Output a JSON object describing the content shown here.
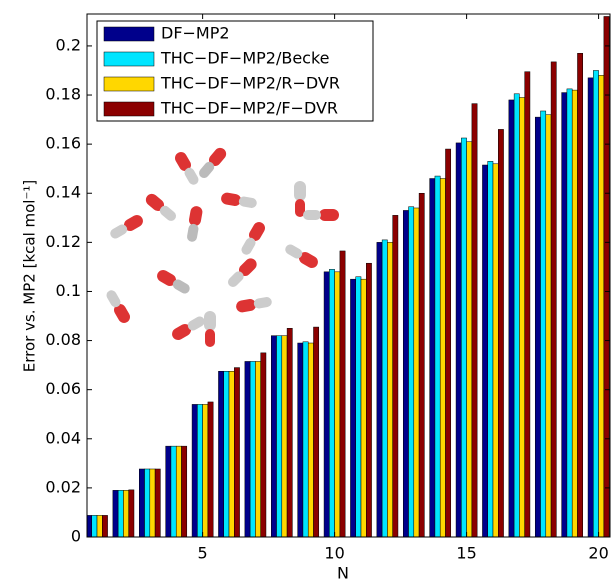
{
  "chart_data": {
    "type": "bar",
    "x_label": "N",
    "y_label": "Error vs. MP2 [kcal mol⁻¹]",
    "x": [
      1,
      2,
      3,
      4,
      5,
      6,
      7,
      8,
      9,
      10,
      11,
      12,
      13,
      14,
      15,
      16,
      17,
      18,
      19,
      20
    ],
    "series": [
      {
        "name": "DF−MP2",
        "color": "#00008b",
        "values": [
          0.0088,
          0.019,
          0.0277,
          0.037,
          0.054,
          0.0675,
          0.0715,
          0.082,
          0.079,
          0.108,
          0.105,
          0.12,
          0.133,
          0.146,
          0.1605,
          0.1515,
          0.178,
          0.171,
          0.181,
          0.187
        ]
      },
      {
        "name": "THC−DF−MP2/Becke",
        "color": "#00e5ff",
        "values": [
          0.0088,
          0.019,
          0.0277,
          0.037,
          0.054,
          0.0675,
          0.0715,
          0.082,
          0.0795,
          0.109,
          0.106,
          0.121,
          0.1345,
          0.147,
          0.1625,
          0.153,
          0.1805,
          0.1735,
          0.1825,
          0.19
        ]
      },
      {
        "name": "THC−DF−MP2/R−DVR",
        "color": "#ffd700",
        "values": [
          0.0088,
          0.019,
          0.0277,
          0.037,
          0.054,
          0.0675,
          0.0715,
          0.082,
          0.079,
          0.108,
          0.105,
          0.12,
          0.134,
          0.146,
          0.161,
          0.152,
          0.179,
          0.172,
          0.182,
          0.188
        ]
      },
      {
        "name": "THC−DF−MP2/F−DVR",
        "color": "#8b0000",
        "values": [
          0.0088,
          0.0192,
          0.0277,
          0.037,
          0.055,
          0.069,
          0.075,
          0.085,
          0.0855,
          0.1165,
          0.1115,
          0.131,
          0.14,
          0.158,
          0.1765,
          0.166,
          0.1895,
          0.1935,
          0.197,
          0.212
        ]
      }
    ],
    "xlim": [
      0.62,
      20.47
    ],
    "xticks": [
      5,
      10,
      15,
      20
    ],
    "ylim": [
      0,
      0.213
    ],
    "yticks": [
      0,
      0.02,
      0.04,
      0.06,
      0.08,
      0.1,
      0.12,
      0.14,
      0.16,
      0.18,
      0.2
    ],
    "legend": "upper left"
  }
}
